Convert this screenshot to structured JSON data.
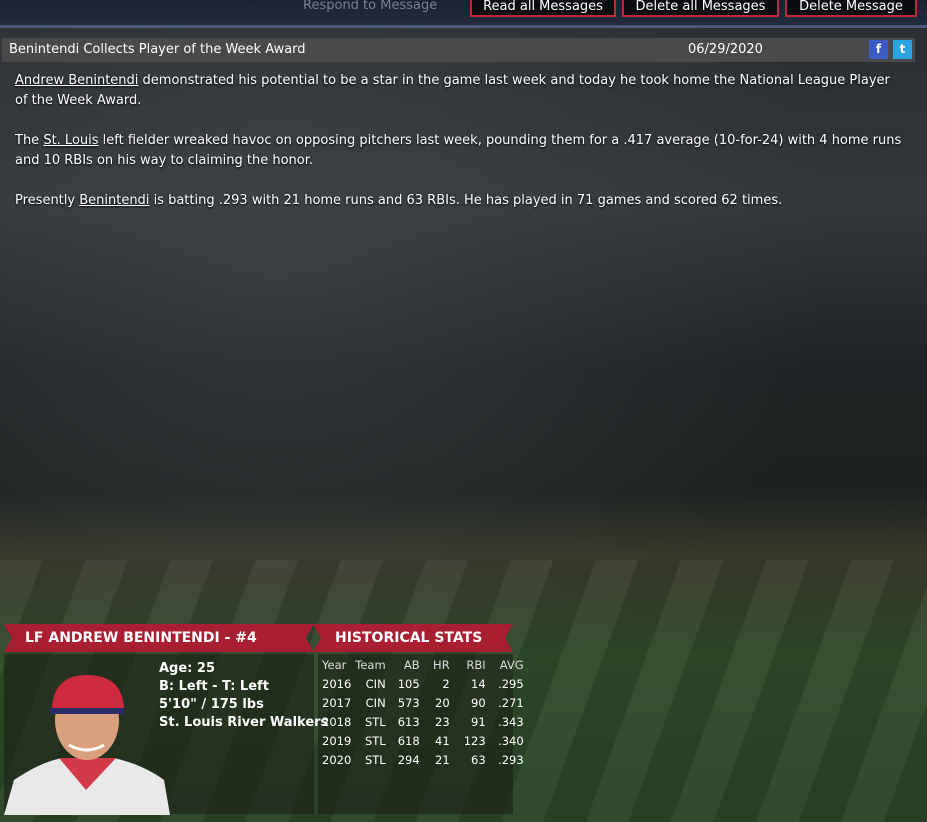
{
  "toolbar": {
    "respond": "Respond to Message",
    "read_all": "Read all Messages",
    "delete_all": "Delete all Messages",
    "delete": "Delete Message"
  },
  "message": {
    "title": "Benintendi Collects Player of the Week Award",
    "date": "06/29/2020",
    "facebook": "f",
    "twitter": "t",
    "p1": {
      "link": "Andrew Benintendi",
      "text": " demonstrated his potential to be a star in the game last week and today he took home the National League Player of the Week Award."
    },
    "p2": {
      "pre": "The ",
      "link": "St. Louis",
      "text": " left fielder wreaked havoc on opposing pitchers last week, pounding them for a .417 average (10-for-24) with 4 home runs and 10 RBIs on his way to claiming the honor."
    },
    "p3": {
      "pre": "Presently ",
      "link": "Benintendi",
      "text": " is batting .293 with 21 home runs and 63 RBIs. He has played in 71 games and scored 62 times."
    }
  },
  "player": {
    "banner": "LF ANDREW BENINTENDI - #4",
    "age": "Age: 25",
    "bats_throws": "B: Left - T: Left",
    "size": "5'10\" / 175 lbs",
    "team": "St. Louis River Walkers"
  },
  "stats": {
    "banner": "HISTORICAL STATS",
    "headers": [
      "Year",
      "Team",
      "AB",
      "HR",
      "RBI",
      "AVG"
    ],
    "rows": [
      [
        "2016",
        "CIN",
        "105",
        "2",
        "14",
        ".295"
      ],
      [
        "2017",
        "CIN",
        "573",
        "20",
        "90",
        ".271"
      ],
      [
        "2018",
        "STL",
        "613",
        "23",
        "91",
        ".343"
      ],
      [
        "2019",
        "STL",
        "618",
        "41",
        "123",
        ".340"
      ],
      [
        "2020",
        "STL",
        "294",
        "21",
        "63",
        ".293"
      ]
    ]
  },
  "colors": {
    "accent": "#a81f32",
    "facebook": "#3b5cc4",
    "twitter": "#2aa3e0"
  }
}
